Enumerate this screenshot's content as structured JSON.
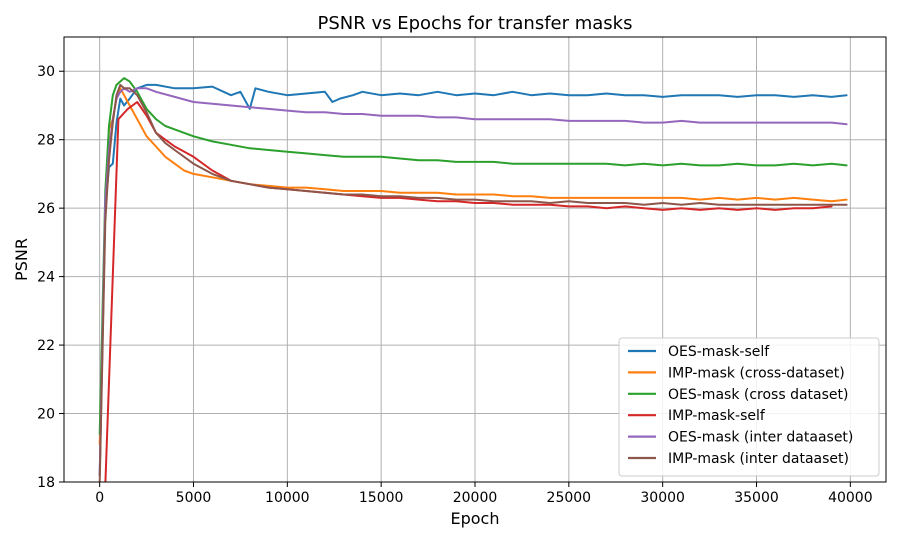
{
  "chart_data": {
    "type": "line",
    "title": "PSNR vs Epochs for transfer masks",
    "xlabel": "Epoch",
    "ylabel": "PSNR",
    "xlim": [
      -1900,
      41900
    ],
    "ylim": [
      18,
      31
    ],
    "xticks": [
      0,
      5000,
      10000,
      15000,
      20000,
      25000,
      30000,
      35000,
      40000
    ],
    "xtick_labels": [
      "0",
      "5000",
      "10000",
      "15000",
      "20000",
      "25000",
      "30000",
      "35000",
      "40000"
    ],
    "yticks": [
      18,
      20,
      22,
      24,
      26,
      28,
      30
    ],
    "ytick_labels": [
      "18",
      "20",
      "22",
      "24",
      "26",
      "28",
      "30"
    ],
    "grid": true,
    "legend_position": "lower right",
    "series": [
      {
        "name": "OES-mask-self",
        "color": "#1f77b4",
        "x": [
          0,
          300,
          500,
          700,
          900,
          1100,
          1300,
          1600,
          2000,
          2500,
          3000,
          4000,
          5000,
          6000,
          7000,
          7500,
          7800,
          8000,
          8300,
          9000,
          10000,
          11000,
          12000,
          12400,
          12800,
          13500,
          14000,
          15000,
          16000,
          17000,
          18000,
          19000,
          20000,
          21000,
          22000,
          23000,
          24000,
          25000,
          26000,
          27000,
          28000,
          29000,
          30000,
          31000,
          32000,
          33000,
          34000,
          35000,
          36000,
          37000,
          38000,
          39000,
          39800
        ],
        "y": [
          18.2,
          26.0,
          27.2,
          27.3,
          28.5,
          29.2,
          29.0,
          29.2,
          29.5,
          29.6,
          29.6,
          29.5,
          29.5,
          29.55,
          29.3,
          29.4,
          29.1,
          28.9,
          29.5,
          29.4,
          29.3,
          29.35,
          29.4,
          29.1,
          29.2,
          29.3,
          29.4,
          29.3,
          29.35,
          29.3,
          29.4,
          29.3,
          29.35,
          29.3,
          29.4,
          29.3,
          29.35,
          29.3,
          29.3,
          29.35,
          29.3,
          29.3,
          29.25,
          29.3,
          29.3,
          29.3,
          29.25,
          29.3,
          29.3,
          29.25,
          29.3,
          29.25,
          29.3
        ]
      },
      {
        "name": "IMP-mask (cross-dataset)",
        "color": "#ff7f0e",
        "x": [
          0,
          300,
          500,
          700,
          900,
          1100,
          1300,
          1600,
          2000,
          2500,
          3000,
          3500,
          4000,
          4500,
          5000,
          6000,
          7000,
          8000,
          9000,
          10000,
          11000,
          12000,
          13000,
          14000,
          15000,
          16000,
          17000,
          18000,
          19000,
          20000,
          21000,
          22000,
          23000,
          24000,
          25000,
          26000,
          27000,
          28000,
          29000,
          30000,
          31000,
          32000,
          33000,
          34000,
          35000,
          36000,
          37000,
          38000,
          39000,
          39800
        ],
        "y": [
          19.1,
          26.0,
          28.3,
          28.6,
          29.2,
          29.5,
          29.3,
          29.0,
          28.6,
          28.1,
          27.8,
          27.5,
          27.3,
          27.1,
          27.0,
          26.9,
          26.8,
          26.7,
          26.65,
          26.6,
          26.6,
          26.55,
          26.5,
          26.5,
          26.5,
          26.45,
          26.45,
          26.45,
          26.4,
          26.4,
          26.4,
          26.35,
          26.35,
          26.3,
          26.3,
          26.3,
          26.3,
          26.3,
          26.3,
          26.3,
          26.3,
          26.25,
          26.3,
          26.25,
          26.3,
          26.25,
          26.3,
          26.25,
          26.2,
          26.25
        ]
      },
      {
        "name": "OES-mask (cross dataset)",
        "color": "#2ca02c",
        "x": [
          0,
          300,
          500,
          700,
          900,
          1100,
          1300,
          1600,
          2000,
          2500,
          3000,
          3500,
          4000,
          5000,
          6000,
          7000,
          8000,
          9000,
          10000,
          11000,
          12000,
          13000,
          14000,
          15000,
          16000,
          17000,
          18000,
          19000,
          20000,
          21000,
          22000,
          23000,
          24000,
          25000,
          26000,
          27000,
          28000,
          29000,
          30000,
          31000,
          32000,
          33000,
          34000,
          35000,
          36000,
          37000,
          38000,
          39000,
          39800
        ],
        "y": [
          19.4,
          26.5,
          28.4,
          29.3,
          29.6,
          29.7,
          29.8,
          29.7,
          29.4,
          28.9,
          28.6,
          28.4,
          28.3,
          28.1,
          27.95,
          27.85,
          27.75,
          27.7,
          27.65,
          27.6,
          27.55,
          27.5,
          27.5,
          27.5,
          27.45,
          27.4,
          27.4,
          27.35,
          27.35,
          27.35,
          27.3,
          27.3,
          27.3,
          27.3,
          27.3,
          27.3,
          27.25,
          27.3,
          27.25,
          27.3,
          27.25,
          27.25,
          27.3,
          27.25,
          27.25,
          27.3,
          27.25,
          27.3,
          27.25
        ]
      },
      {
        "name": "IMP-mask-self",
        "color": "#d62728",
        "x": [
          300,
          1000,
          1500,
          2000,
          2500,
          3000,
          3500,
          4000,
          5000,
          6000,
          7000,
          8000,
          9000,
          10000,
          11000,
          12000,
          13000,
          14000,
          15000,
          16000,
          17000,
          18000,
          19000,
          20000,
          21000,
          22000,
          23000,
          24000,
          25000,
          26000,
          27000,
          28000,
          29000,
          30000,
          31000,
          32000,
          33000,
          34000,
          35000,
          36000,
          37000,
          38000,
          39000
        ],
        "y": [
          17.9,
          28.6,
          28.9,
          29.1,
          28.7,
          28.2,
          28.0,
          27.8,
          27.5,
          27.1,
          26.8,
          26.7,
          26.6,
          26.55,
          26.5,
          26.45,
          26.4,
          26.35,
          26.3,
          26.3,
          26.25,
          26.2,
          26.2,
          26.15,
          26.15,
          26.1,
          26.1,
          26.1,
          26.05,
          26.05,
          26.0,
          26.05,
          26.0,
          25.95,
          26.0,
          25.95,
          26.0,
          25.95,
          26.0,
          25.95,
          26.0,
          26.0,
          26.05
        ]
      },
      {
        "name": "OES-mask (inter dataaset)",
        "color": "#9467bd",
        "x": [
          0,
          300,
          500,
          700,
          900,
          1100,
          1300,
          1600,
          2000,
          2500,
          3000,
          4000,
          5000,
          6000,
          7000,
          8000,
          9000,
          10000,
          11000,
          12000,
          13000,
          14000,
          15000,
          16000,
          17000,
          18000,
          19000,
          20000,
          21000,
          22000,
          23000,
          24000,
          25000,
          26000,
          27000,
          28000,
          29000,
          30000,
          31000,
          32000,
          33000,
          34000,
          35000,
          36000,
          37000,
          38000,
          39000,
          39800
        ],
        "y": [
          18.2,
          26.2,
          27.7,
          28.6,
          29.2,
          29.4,
          29.5,
          29.4,
          29.5,
          29.5,
          29.4,
          29.25,
          29.1,
          29.05,
          29.0,
          28.95,
          28.9,
          28.85,
          28.8,
          28.8,
          28.75,
          28.75,
          28.7,
          28.7,
          28.7,
          28.65,
          28.65,
          28.6,
          28.6,
          28.6,
          28.6,
          28.6,
          28.55,
          28.55,
          28.55,
          28.55,
          28.5,
          28.5,
          28.55,
          28.5,
          28.5,
          28.5,
          28.5,
          28.5,
          28.5,
          28.5,
          28.5,
          28.45
        ]
      },
      {
        "name": "IMP-mask (inter dataaset)",
        "color": "#8c564b",
        "x": [
          0,
          300,
          500,
          700,
          900,
          1100,
          1300,
          1600,
          2000,
          2500,
          3000,
          3500,
          4000,
          5000,
          6000,
          7000,
          8000,
          9000,
          10000,
          11000,
          12000,
          13000,
          14000,
          15000,
          16000,
          17000,
          18000,
          19000,
          20000,
          21000,
          22000,
          23000,
          24000,
          25000,
          26000,
          27000,
          28000,
          29000,
          30000,
          31000,
          32000,
          33000,
          34000,
          35000,
          36000,
          37000,
          38000,
          39000,
          39800
        ],
        "y": [
          18.0,
          25.6,
          27.4,
          28.5,
          29.3,
          29.6,
          29.5,
          29.5,
          29.3,
          28.8,
          28.2,
          27.9,
          27.7,
          27.3,
          27.0,
          26.8,
          26.7,
          26.6,
          26.55,
          26.5,
          26.45,
          26.4,
          26.4,
          26.35,
          26.35,
          26.3,
          26.3,
          26.25,
          26.25,
          26.2,
          26.2,
          26.2,
          26.15,
          26.2,
          26.15,
          26.15,
          26.15,
          26.1,
          26.15,
          26.1,
          26.15,
          26.1,
          26.1,
          26.1,
          26.1,
          26.1,
          26.1,
          26.1,
          26.1
        ]
      }
    ]
  }
}
